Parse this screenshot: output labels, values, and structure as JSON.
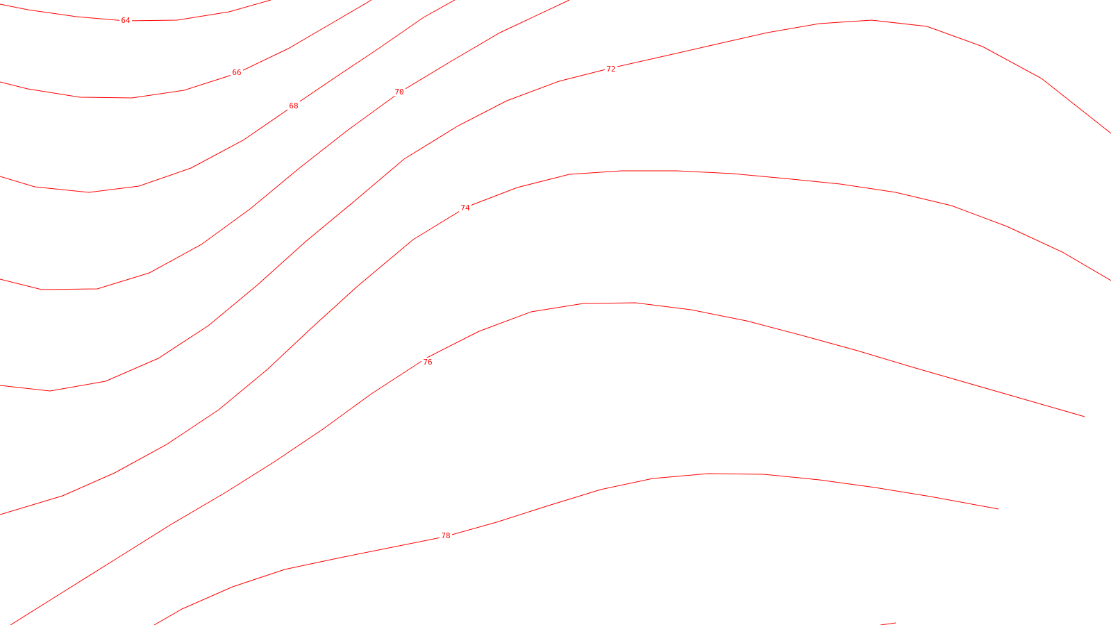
{
  "map": {
    "contour_color": "#ff0000",
    "background": "#ffffff",
    "contours": [
      {
        "id": "c64",
        "label": "64"
      },
      {
        "id": "c66",
        "label": "66"
      },
      {
        "id": "c68",
        "label": "68"
      },
      {
        "id": "c70",
        "label": "70"
      },
      {
        "id": "c72",
        "label": "72"
      },
      {
        "id": "c74",
        "label": "74"
      },
      {
        "id": "c76",
        "label": "76"
      },
      {
        "id": "c78",
        "label": "78"
      },
      {
        "id": "c80",
        "label": ""
      }
    ]
  }
}
